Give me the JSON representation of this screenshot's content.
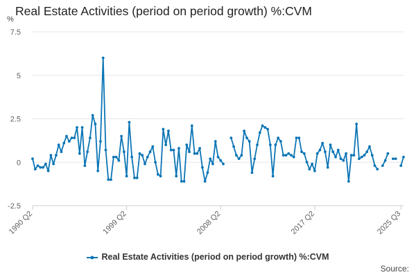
{
  "chart_data": {
    "type": "line",
    "title": "Real Estate Activities (period on period growth) %:CVM",
    "ylabel": "%",
    "xlabel": "",
    "ylim": [
      -2.5,
      7.5
    ],
    "yticks": [
      "7.5",
      "5",
      "2.5",
      "0",
      "-2.5"
    ],
    "ytick_values": [
      7.5,
      5,
      2.5,
      0,
      -2.5
    ],
    "xtick_labels": [
      "1990 Q2",
      "1999 Q2",
      "2008 Q2",
      "2017 Q2",
      "2025 Q3"
    ],
    "xtick_indices": [
      0,
      36,
      72,
      108,
      141
    ],
    "grid": true,
    "legend": "bottom-center",
    "color": "#0b75b5",
    "series": [
      {
        "name": "Real Estate Activities (period on period growth) %:CVM",
        "values": [
          0.2,
          -0.4,
          -0.2,
          -0.3,
          -0.3,
          -0.1,
          -0.5,
          0.4,
          -0.1,
          0.4,
          1.0,
          0.6,
          1.1,
          1.5,
          1.2,
          1.4,
          1.4,
          2.0,
          0.5,
          2.0,
          -0.2,
          0.6,
          1.4,
          2.7,
          2.2,
          -0.5,
          1.2,
          6.0,
          0.7,
          -1.0,
          -1.0,
          0.3,
          0.3,
          0.1,
          1.5,
          0.6,
          -0.8,
          2.3,
          0.3,
          -0.9,
          -0.9,
          0.5,
          0.4,
          -0.1,
          0.3,
          0.6,
          0.9,
          0.0,
          -0.7,
          -0.8,
          1.9,
          1.0,
          1.8,
          0.7,
          0.7,
          -0.8,
          0.8,
          -1.1,
          -1.1,
          1.0,
          0.6,
          2.1,
          0.5,
          0.5,
          0.8,
          -0.3,
          -1.1,
          -0.6,
          0.2,
          -0.1,
          1.2,
          0.3,
          0.1,
          -0.1,
          null,
          null,
          1.4,
          0.9,
          0.4,
          0.2,
          0.4,
          1.8,
          1.4,
          1.2,
          -0.6,
          0.2,
          1.0,
          1.7,
          2.1,
          2.0,
          1.9,
          1.0,
          -0.8,
          1.0,
          1.4,
          1.2,
          0.4,
          0.4,
          0.5,
          0.4,
          0.3,
          1.4,
          1.4,
          0.6,
          0.5,
          0.0,
          -0.4,
          -0.1,
          -0.5,
          0.5,
          0.7,
          1.1,
          0.6,
          -0.3,
          1.0,
          0.6,
          0.3,
          0.7,
          0.2,
          0.1,
          0.5,
          -1.1,
          0.4,
          0.4,
          2.2,
          0.2,
          0.3,
          0.4,
          0.6,
          0.9,
          0.4,
          -0.2,
          -0.4,
          null,
          -0.2,
          0.1,
          0.5,
          null,
          0.2,
          0.2,
          null,
          -0.2,
          0.3
        ]
      }
    ]
  },
  "legend_label": "Real Estate Activities (period on period growth) %:CVM",
  "source_label": "Source:"
}
